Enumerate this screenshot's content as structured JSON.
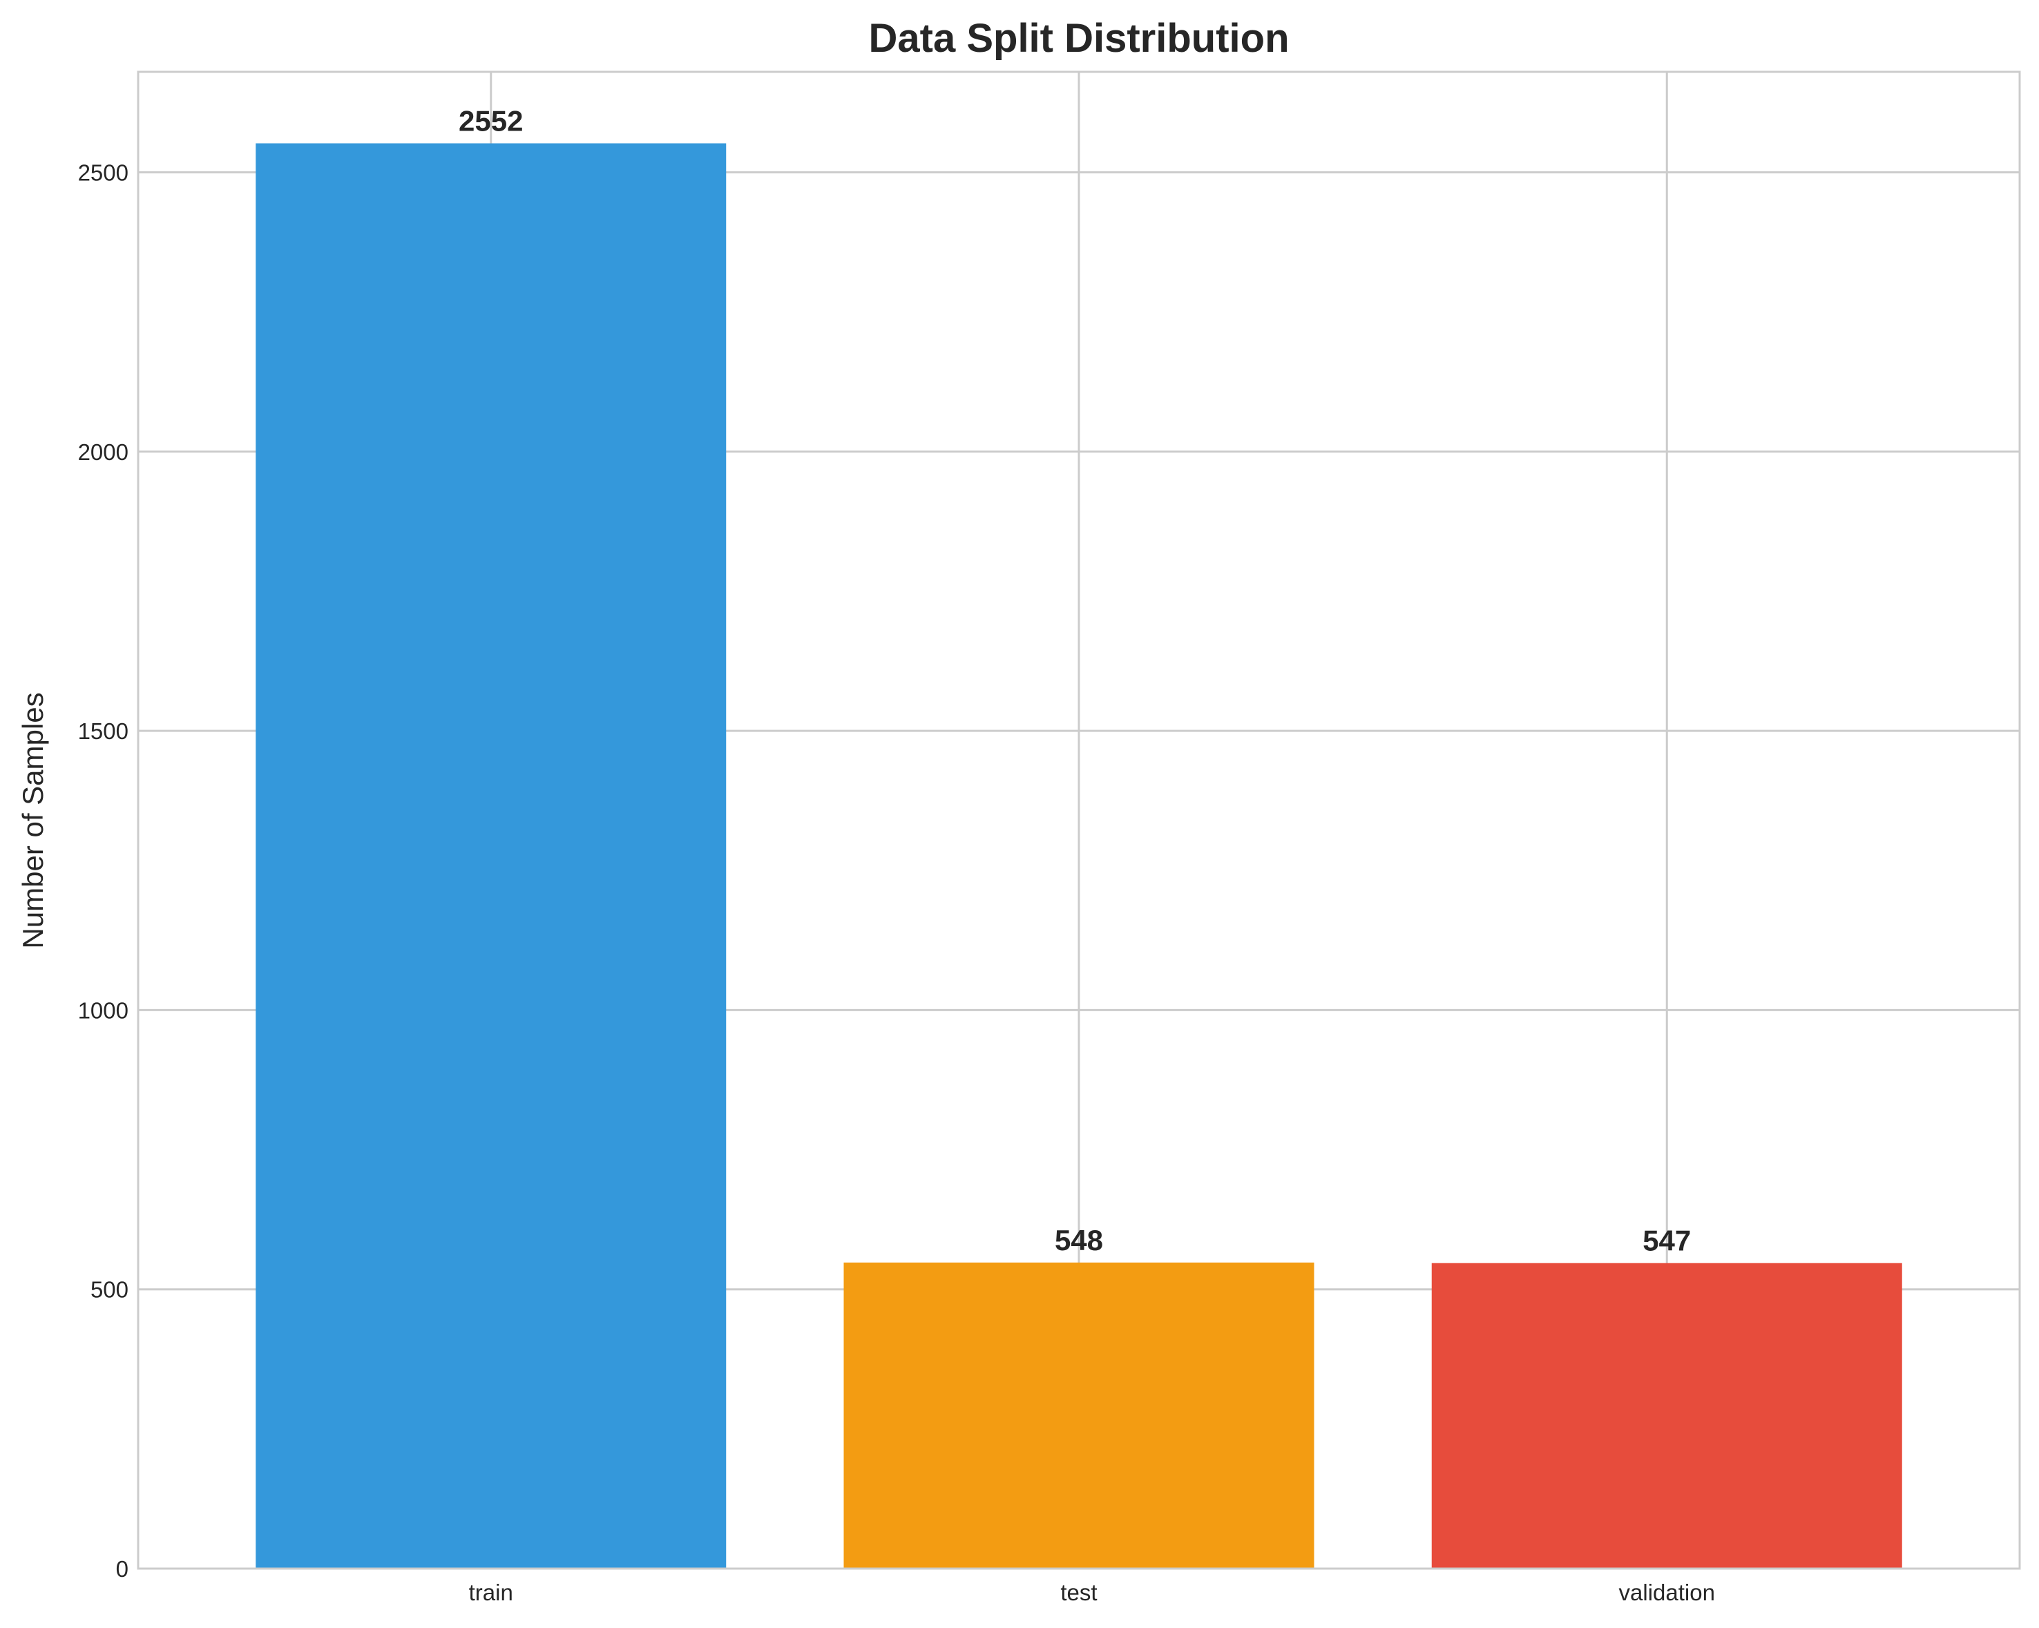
{
  "chart_data": {
    "type": "bar",
    "title": "Data Split Distribution",
    "xlabel": "",
    "ylabel": "Number of Samples",
    "categories": [
      "train",
      "test",
      "validation"
    ],
    "values": [
      2552,
      548,
      547
    ],
    "data_labels": [
      "2552",
      "548",
      "547"
    ],
    "colors": [
      "#3498db",
      "#f39c12",
      "#e74c3c"
    ],
    "ylim": [
      0,
      2680
    ],
    "yticks": [
      0,
      500,
      1000,
      1500,
      2000,
      2500
    ],
    "ytick_labels": [
      "0",
      "500",
      "1000",
      "1500",
      "2000",
      "2500"
    ],
    "grid": true,
    "legend": "none"
  }
}
